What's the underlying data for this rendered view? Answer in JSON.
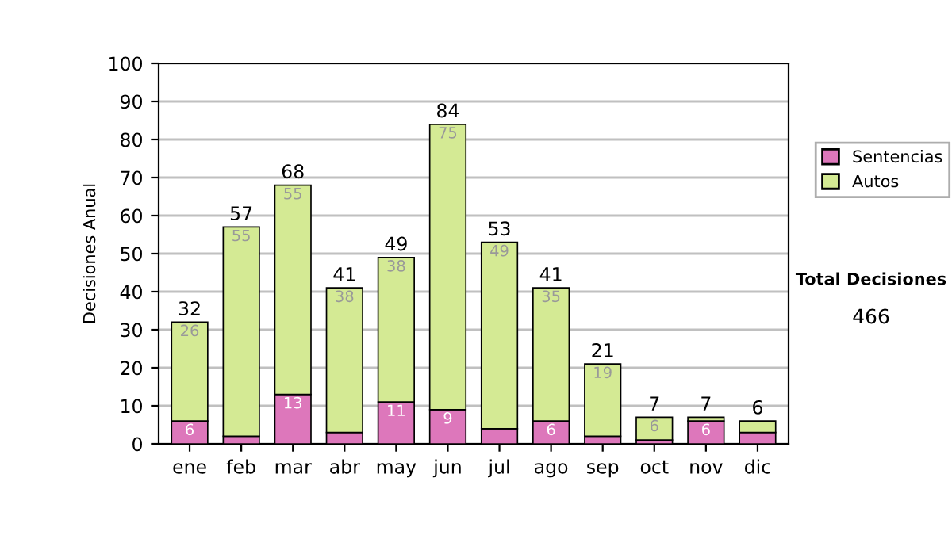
{
  "chart_data": {
    "type": "bar",
    "stacked": true,
    "ylabel": "Decisiones Anual",
    "categories": [
      "ene",
      "feb",
      "mar",
      "abr",
      "may",
      "jun",
      "jul",
      "ago",
      "sep",
      "oct",
      "nov",
      "dic"
    ],
    "series": [
      {
        "name": "Sentencias",
        "color": "#dd77bb",
        "values": [
          6,
          2,
          13,
          3,
          11,
          9,
          4,
          6,
          2,
          1,
          6,
          3
        ],
        "value_labels": [
          "6",
          null,
          "13",
          null,
          "11",
          "9",
          null,
          "6",
          null,
          null,
          "6",
          null
        ]
      },
      {
        "name": "Autos",
        "color": "#d4ea94",
        "values": [
          26,
          55,
          55,
          38,
          38,
          75,
          49,
          35,
          19,
          6,
          1,
          3
        ],
        "value_labels": [
          "26",
          "55",
          "55",
          "38",
          "38",
          "75",
          "49",
          "35",
          "19",
          "6",
          null,
          null
        ]
      }
    ],
    "totals": [
      "32",
      "57",
      "68",
      "41",
      "49",
      "84",
      "53",
      "41",
      "21",
      "7",
      "7",
      "6"
    ],
    "ylim": [
      0,
      100
    ],
    "yticks": [
      0,
      10,
      20,
      30,
      40,
      50,
      60,
      70,
      80,
      90,
      100
    ],
    "grid": "y",
    "legend": "right",
    "annotations": [
      "Total Decisiones",
      "466"
    ]
  }
}
